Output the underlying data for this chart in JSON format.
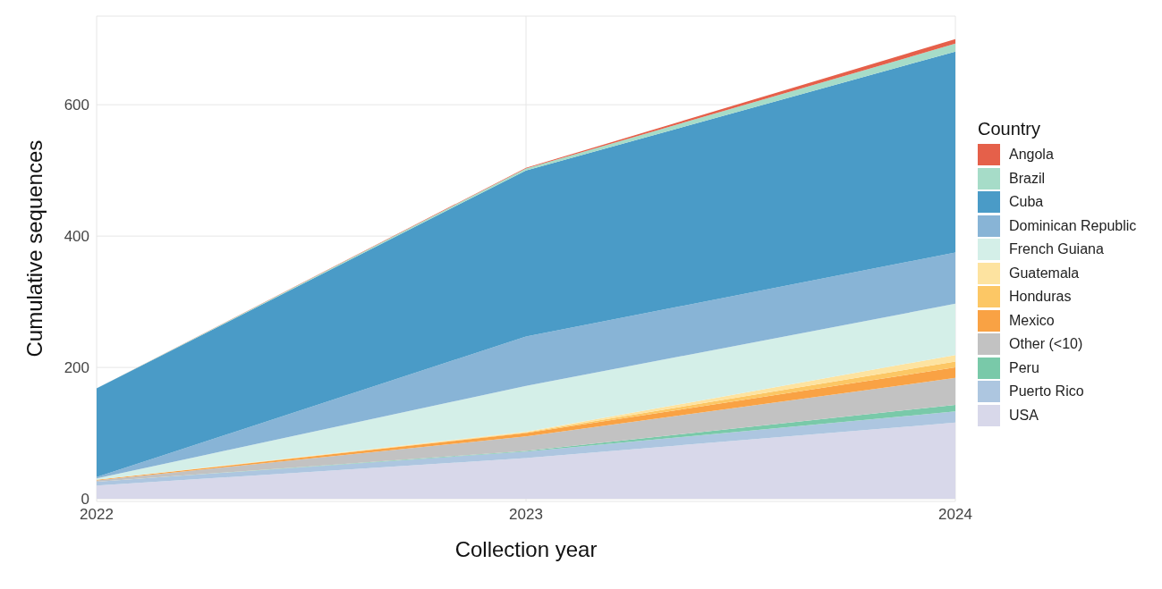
{
  "chart_data": {
    "type": "area",
    "stacked": true,
    "xlabel": "Collection year",
    "ylabel": "Cumulative sequences",
    "legend_title": "Country",
    "legend": "right",
    "grid": true,
    "x": [
      2022,
      2023,
      2024
    ],
    "xlim": [
      2022,
      2024
    ],
    "xticks": [
      2022,
      2023,
      2024
    ],
    "ylim": [
      -4,
      735
    ],
    "yticks": [
      0,
      200,
      400,
      600
    ],
    "series": [
      {
        "name": "USA",
        "color": "#d8d8ea",
        "values": [
          20,
          62,
          116
        ]
      },
      {
        "name": "Puerto Rico",
        "color": "#adc6e0",
        "values": [
          6,
          10,
          17
        ]
      },
      {
        "name": "Peru",
        "color": "#79c9a9",
        "values": [
          0,
          1,
          10
        ]
      },
      {
        "name": "Other (<10)",
        "color": "#c2c2c2",
        "values": [
          2,
          22,
          41
        ]
      },
      {
        "name": "Mexico",
        "color": "#f9a244",
        "values": [
          1,
          5,
          16
        ]
      },
      {
        "name": "Honduras",
        "color": "#fcc765",
        "values": [
          0,
          1,
          9
        ]
      },
      {
        "name": "Guatemala",
        "color": "#fde3a0",
        "values": [
          0,
          1,
          10
        ]
      },
      {
        "name": "French Guiana",
        "color": "#d4efe8",
        "values": [
          2,
          70,
          78
        ]
      },
      {
        "name": "Dominican Republic",
        "color": "#88b4d6",
        "values": [
          2,
          75,
          78
        ]
      },
      {
        "name": "Cuba",
        "color": "#4a9bc7",
        "values": [
          135,
          253,
          306
        ]
      },
      {
        "name": "Brazil",
        "color": "#a6dcc8",
        "values": [
          0,
          3,
          12
        ]
      },
      {
        "name": "Angola",
        "color": "#e5604a",
        "values": [
          0,
          1,
          7
        ]
      }
    ]
  }
}
